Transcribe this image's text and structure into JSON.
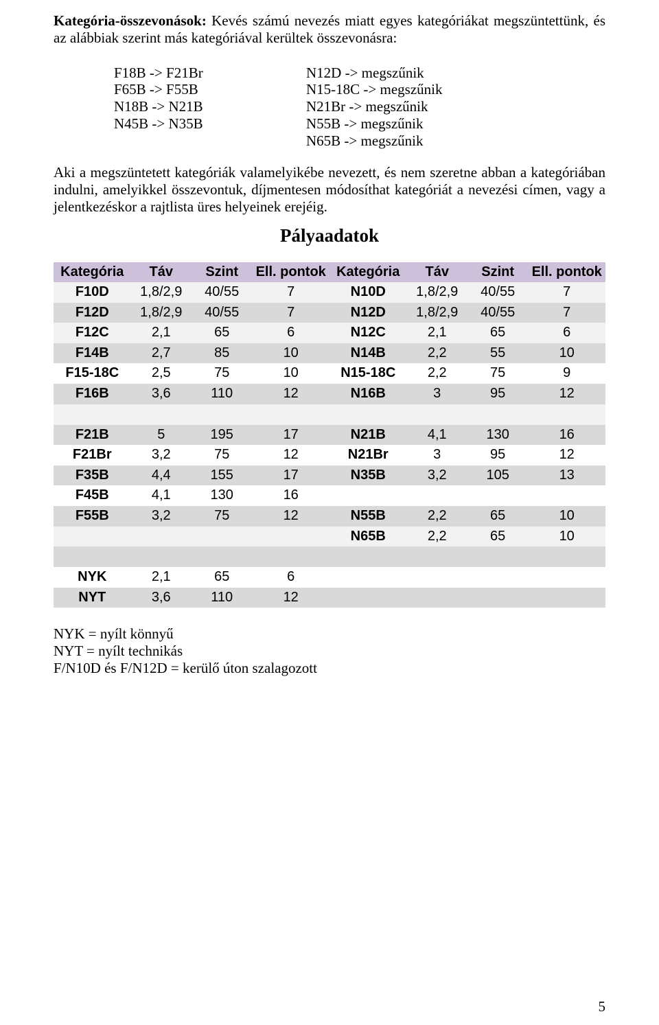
{
  "intro": {
    "heading_bold": "Kategória-összevonások: ",
    "heading_rest": "Kevés számú nevezés miatt egyes kategóriákat megszüntettünk, és az alábbiak szerint más kategóriával kerültek összevonásra:"
  },
  "mappings": [
    {
      "left": "F18B -> F21Br",
      "right": "N12D -> megszűnik"
    },
    {
      "left": "F65B -> F55B",
      "right": "N15-18C -> megszűnik"
    },
    {
      "left": "N18B -> N21B",
      "right": "N21Br -> megszűnik"
    },
    {
      "left": "N45B -> N35B",
      "right": "N55B -> megszűnik"
    },
    {
      "left": "",
      "right": "N65B -> megszűnik"
    }
  ],
  "explain": "Aki a megszüntetett kategóriák valamelyikébe nevezett, és nem szeretne abban a kategóriában indulni, amelyikkel összevontuk, díjmentesen módosíthat kategóriát a nevezési címen, vagy a jelentkezéskor a rajtlista üres helyeinek erejéig.",
  "table_title": "Pályaadatok",
  "table": {
    "headers": [
      "Kategória",
      "Táv",
      "Szint",
      "Ell. pontok",
      "Kategória",
      "Táv",
      "Szint",
      "Ell. pontok"
    ],
    "col_widths": [
      "14%",
      "11%",
      "11%",
      "14%",
      "14%",
      "11%",
      "11%",
      "14%"
    ],
    "header_bg": "#ccc0da",
    "band_light": "#f2f2f2",
    "band_dark": "#d9d9d9",
    "band_white": "#ffffff",
    "blocks": [
      {
        "rows": [
          {
            "band": "light",
            "cells": [
              "F10D",
              "1,8/2,9",
              "40/55",
              "7",
              "N10D",
              "1,8/2,9",
              "40/55",
              "7"
            ]
          },
          {
            "band": "dark",
            "cells": [
              "F12D",
              "1,8/2,9",
              "40/55",
              "7",
              "N12D",
              "1,8/2,9",
              "40/55",
              "7"
            ]
          },
          {
            "band": "light",
            "cells": [
              "F12C",
              "2,1",
              "65",
              "6",
              "N12C",
              "2,1",
              "65",
              "6"
            ]
          },
          {
            "band": "dark",
            "cells": [
              "F14B",
              "2,7",
              "85",
              "10",
              "N14B",
              "2,2",
              "55",
              "10"
            ]
          },
          {
            "band": "white",
            "cells": [
              "F15-18C",
              "2,5",
              "75",
              "10",
              "N15-18C",
              "2,2",
              "75",
              "9"
            ]
          },
          {
            "band": "dark",
            "cells": [
              "F16B",
              "3,6",
              "110",
              "12",
              "N16B",
              "3",
              "95",
              "12"
            ]
          }
        ]
      },
      {
        "spacer": "light",
        "rows": [
          {
            "band": "dark",
            "cells": [
              "F21B",
              "5",
              "195",
              "17",
              "N21B",
              "4,1",
              "130",
              "16"
            ]
          },
          {
            "band": "white",
            "cells": [
              "F21Br",
              "3,2",
              "75",
              "12",
              "N21Br",
              "3",
              "95",
              "12"
            ]
          },
          {
            "band": "dark",
            "cells": [
              "F35B",
              "4,4",
              "155",
              "17",
              "N35B",
              "3,2",
              "105",
              "13"
            ]
          },
          {
            "band": "white",
            "cells": [
              "F45B",
              "4,1",
              "130",
              "16",
              "",
              "",
              "",
              ""
            ]
          },
          {
            "band": "dark",
            "cells": [
              "F55B",
              "3,2",
              "75",
              "12",
              "N55B",
              "2,2",
              "65",
              "10"
            ]
          },
          {
            "band": "light",
            "cells": [
              "",
              "",
              "",
              "",
              "N65B",
              "2,2",
              "65",
              "10"
            ]
          }
        ]
      },
      {
        "spacer": "dark",
        "rows": [
          {
            "band": "white",
            "cells": [
              "NYK",
              "2,1",
              "65",
              "6",
              "",
              "",
              "",
              ""
            ]
          },
          {
            "band": "dark",
            "cells": [
              "NYT",
              "3,6",
              "110",
              "12",
              "",
              "",
              "",
              ""
            ]
          }
        ]
      }
    ]
  },
  "notes": [
    "NYK = nyílt könnyű",
    "NYT = nyílt technikás",
    "F/N10D és F/N12D = kerülő úton szalagozott"
  ],
  "page_number": "5"
}
